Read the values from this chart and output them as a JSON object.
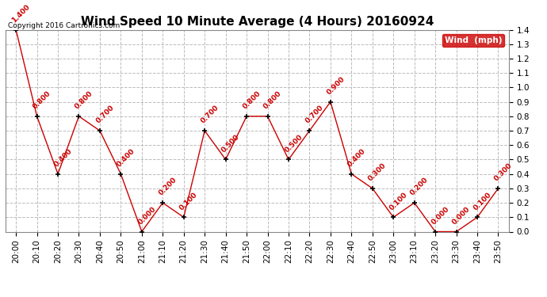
{
  "title": "Wind Speed 10 Minute Average (4 Hours) 20160924",
  "copyright": "Copyright 2016 Cartronics.com",
  "legend_label": "Wind  (mph)",
  "legend_bg": "#cc0000",
  "legend_text_color": "#ffffff",
  "times": [
    "20:00",
    "20:10",
    "20:20",
    "20:30",
    "20:40",
    "20:50",
    "21:00",
    "21:10",
    "21:20",
    "21:30",
    "21:40",
    "21:50",
    "22:00",
    "22:10",
    "22:20",
    "22:30",
    "22:40",
    "22:50",
    "23:00",
    "23:10",
    "23:20",
    "23:30",
    "23:40",
    "23:50"
  ],
  "values": [
    1.4,
    0.8,
    0.4,
    0.8,
    0.7,
    0.4,
    0.0,
    0.2,
    0.1,
    0.7,
    0.5,
    0.8,
    0.8,
    0.5,
    0.7,
    0.9,
    0.4,
    0.3,
    0.1,
    0.2,
    0.0,
    0.0,
    0.1,
    0.3
  ],
  "line_color": "#cc0000",
  "marker_color": "#000000",
  "label_color": "#cc0000",
  "ylim": [
    0.0,
    1.4
  ],
  "yticks": [
    0.0,
    0.1,
    0.2,
    0.3,
    0.4,
    0.5,
    0.6,
    0.7,
    0.8,
    0.9,
    1.0,
    1.1,
    1.2,
    1.3,
    1.4
  ],
  "background_color": "#ffffff",
  "grid_color": "#bbbbbb",
  "title_fontsize": 11,
  "label_fontsize": 6.5,
  "tick_fontsize": 7.5
}
